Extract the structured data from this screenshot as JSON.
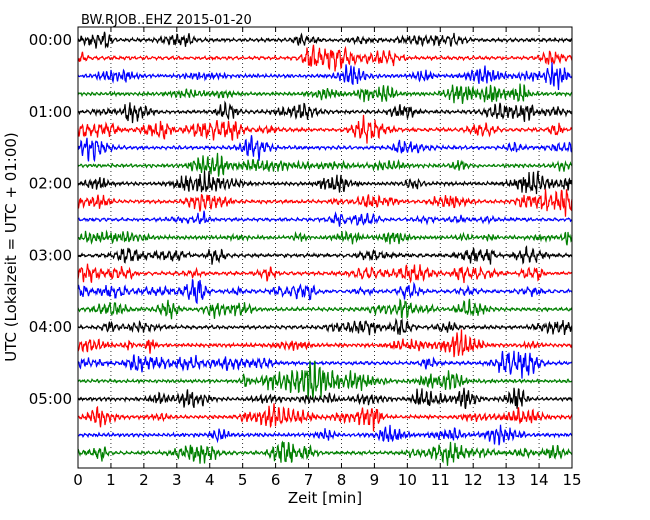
{
  "chart_data": {
    "type": "line",
    "title": "BW.RJOB..EHZ 2015-01-20",
    "xlabel": "Zeit  [min]",
    "ylabel": "UTC (Lokalzeit = UTC + 01:00)",
    "xlim": [
      0,
      15
    ],
    "x_ticks": [
      0,
      1,
      2,
      3,
      4,
      5,
      6,
      7,
      8,
      9,
      10,
      11,
      12,
      13,
      14,
      15
    ],
    "x_tick_labels": [
      "0",
      "1",
      "2",
      "3",
      "4",
      "5",
      "6",
      "7",
      "8",
      "9",
      "10",
      "11",
      "12",
      "13",
      "14",
      "15"
    ],
    "y_ticks_traces": [
      0,
      4,
      8,
      12,
      16,
      20
    ],
    "y_tick_labels": [
      "00:00",
      "01:00",
      "02:00",
      "03:00",
      "04:00",
      "05:00"
    ],
    "trace_minutes": 15,
    "trace_count": 24,
    "trace_colors": [
      "#000000",
      "#ff0000",
      "#0000ff",
      "#008000"
    ],
    "vertical_grid": "dotted",
    "start_times": [
      "00:00",
      "00:15",
      "00:30",
      "00:45",
      "01:00",
      "01:15",
      "01:30",
      "01:45",
      "02:00",
      "02:15",
      "02:30",
      "02:45",
      "03:00",
      "03:15",
      "03:30",
      "03:45",
      "04:00",
      "04:15",
      "04:30",
      "04:45",
      "05:00",
      "05:15",
      "05:30",
      "05:45"
    ]
  }
}
